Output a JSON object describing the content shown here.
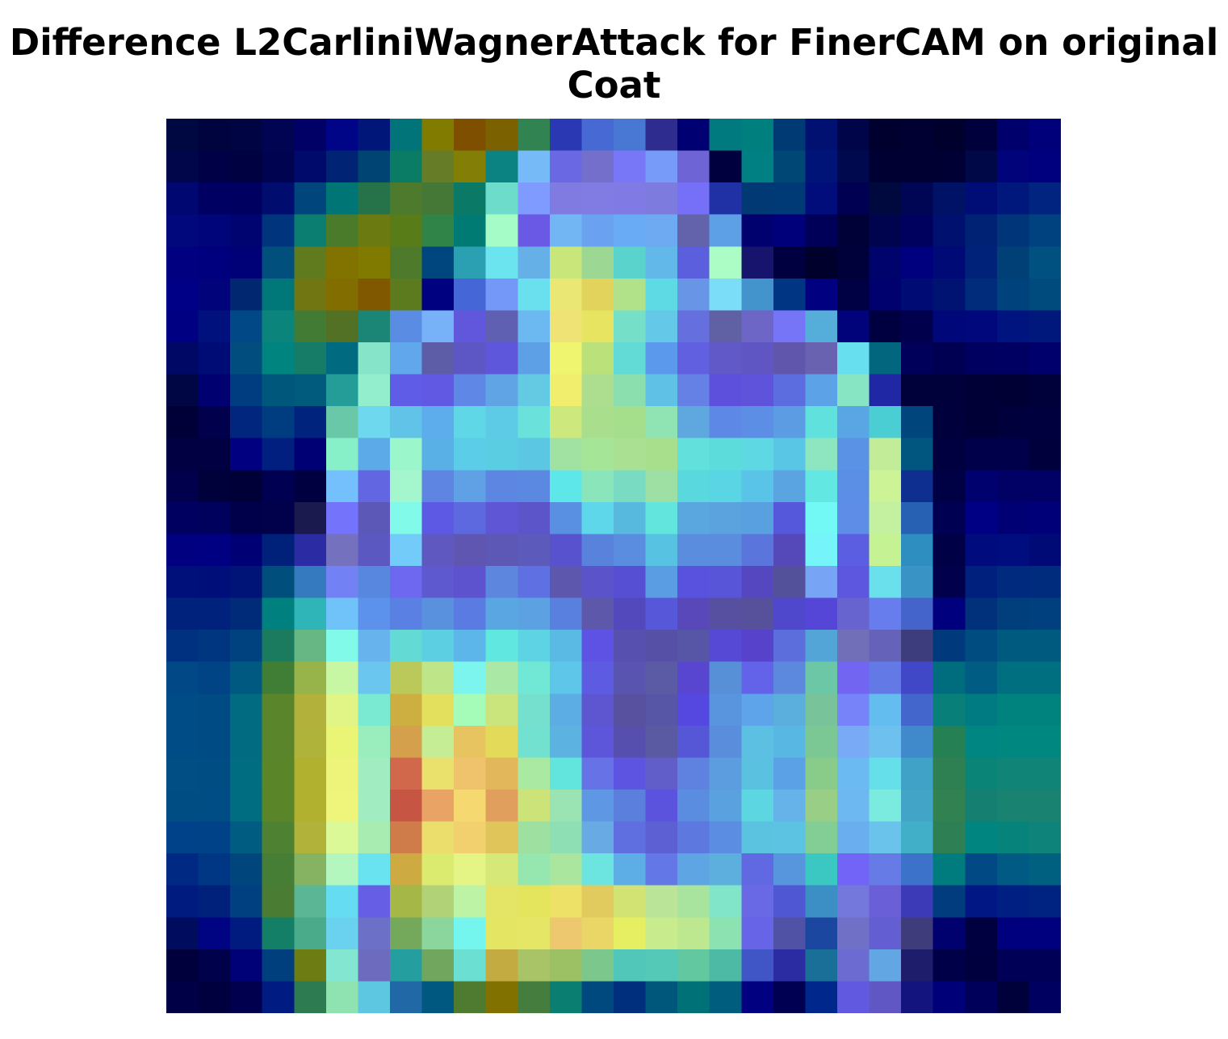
{
  "title": {
    "line1": "Difference L2CarliniWagnerAttack for FinerCAM on original",
    "line2": "Coat"
  },
  "chart_data": {
    "type": "heatmap",
    "title": "Difference L2CarliniWagnerAttack for FinerCAM on original Coat",
    "axes_visible": false,
    "grid": false,
    "rows": 28,
    "cols": 28,
    "colors": [
      [
        "#000842",
        "#00043e",
        "#000442",
        "#000452",
        "#000066",
        "#000487",
        "#001779",
        "#007478",
        "#817b00",
        "#7f4f00",
        "#7b6100",
        "#318351",
        "#2b38b4",
        "#4669d3",
        "#4877d4",
        "#2e2d8f",
        "#000072",
        "#007a7f",
        "#007f7f",
        "#003a74",
        "#001171",
        "#000448",
        "#00002f",
        "#000032",
        "#00002d",
        "#00003d",
        "#00006d",
        "#00007b"
      ],
      [
        "#000649",
        "#000047",
        "#000140",
        "#00034f",
        "#000a6b",
        "#002473",
        "#004473",
        "#0a7b65",
        "#667c27",
        "#837f06",
        "#0b8383",
        "#76baf8",
        "#6a68e3",
        "#736fcb",
        "#7777f7",
        "#779bf9",
        "#6e64d6",
        "#00003f",
        "#008082",
        "#004776",
        "#001477",
        "#00084e",
        "#000033",
        "#000132",
        "#000035",
        "#000848",
        "#00037a",
        "#00007f"
      ],
      [
        "#000770",
        "#000062",
        "#000061",
        "#000d6e",
        "#00457c",
        "#007575",
        "#267349",
        "#4e7a2d",
        "#457837",
        "#0a7a67",
        "#6edcca",
        "#7f9bff",
        "#7f7be0",
        "#817ce3",
        "#7f7ae4",
        "#7d7bdd",
        "#7670f9",
        "#2031a5",
        "#003973",
        "#003a76",
        "#000d7a",
        "#000053",
        "#00093e",
        "#000654",
        "#001265",
        "#000d76",
        "#00187b",
        "#00247f"
      ],
      [
        "#00087c",
        "#00057a",
        "#000470",
        "#00357e",
        "#0b7d71",
        "#4a7b2b",
        "#6c7a12",
        "#587c18",
        "#318448",
        "#007b73",
        "#a6fcc7",
        "#6959e4",
        "#72b6f3",
        "#6aa1f0",
        "#6aabf6",
        "#6eaaf1",
        "#6263aa",
        "#5ea0e5",
        "#00016f",
        "#00007a",
        "#000058",
        "#000136",
        "#00034e",
        "#00015f",
        "#00106f",
        "#002275",
        "#003679",
        "#00417f"
      ],
      [
        "#000080",
        "#00007f",
        "#000077",
        "#004f7d",
        "#5f7b1e",
        "#827200",
        "#807a00",
        "#4e7a2b",
        "#00467e",
        "#2ba0b2",
        "#6ce4ef",
        "#65b0e6",
        "#c9e67b",
        "#9cd893",
        "#5ad3cd",
        "#62b8e8",
        "#5b5edd",
        "#abfcc5",
        "#16146c",
        "#000040",
        "#00002c",
        "#00003b",
        "#00036b",
        "#00007e",
        "#000a76",
        "#002379",
        "#004077",
        "#005080"
      ],
      [
        "#000087",
        "#000379",
        "#00276f",
        "#007779",
        "#717512",
        "#816d00",
        "#805800",
        "#5b7b1e",
        "#000180",
        "#4566d6",
        "#7398f8",
        "#6ae0ef",
        "#ebe774",
        "#e2d35d",
        "#b1e289",
        "#5edae4",
        "#6995e7",
        "#7bddf8",
        "#4393cc",
        "#003584",
        "#000080",
        "#000044",
        "#00006e",
        "#000c73",
        "#001373",
        "#002c7b",
        "#00427c",
        "#004b7d"
      ],
      [
        "#000083",
        "#00117d",
        "#004886",
        "#0b847b",
        "#427c34",
        "#527124",
        "#1b8576",
        "#5a8ce3",
        "#77b2f8",
        "#6157dc",
        "#6060b2",
        "#6cb8f1",
        "#f0e375",
        "#e6e460",
        "#76dfc7",
        "#64c8e9",
        "#6570de",
        "#6060a5",
        "#6e66c6",
        "#7775f7",
        "#54aed9",
        "#00037a",
        "#000041",
        "#00004c",
        "#000778",
        "#00087c",
        "#001480",
        "#00187b"
      ],
      [
        "#000866",
        "#000c75",
        "#004d7e",
        "#00847f",
        "#167b67",
        "#006a80",
        "#86e4c9",
        "#60a7ec",
        "#5d5ca7",
        "#5c57c5",
        "#5f57db",
        "#5ea0e6",
        "#f0f570",
        "#bbe17a",
        "#62dbd7",
        "#5b99ec",
        "#6160e1",
        "#6059c7",
        "#5f56c4",
        "#6057ad",
        "#6862b0",
        "#67dfee",
        "#01667e",
        "#00005a",
        "#000053",
        "#000060",
        "#000062",
        "#00006c"
      ],
      [
        "#000643",
        "#000070",
        "#003d80",
        "#00577c",
        "#005b7d",
        "#249c98",
        "#92eecc",
        "#5f5de8",
        "#6159e3",
        "#5f87e5",
        "#61a4e6",
        "#64cae4",
        "#f0ee6c",
        "#addd8e",
        "#8bdfae",
        "#60c1e7",
        "#6681e6",
        "#5d50dd",
        "#5e53da",
        "#5c6de0",
        "#5ba2e7",
        "#87e5c3",
        "#2027a4",
        "#00003b",
        "#00003a",
        "#000036",
        "#000035",
        "#00003b"
      ],
      [
        "#000039",
        "#00004c",
        "#00277d",
        "#003d80",
        "#00247e",
        "#68c8a7",
        "#6dd8ee",
        "#60c3e7",
        "#5daded",
        "#60d7e7",
        "#5dcbe5",
        "#6ae2db",
        "#cde87d",
        "#a9de8c",
        "#a5df8b",
        "#90e3b3",
        "#5ea7df",
        "#5e88e5",
        "#5d8ee5",
        "#5b9ce3",
        "#60e1dd",
        "#5aa6e5",
        "#4bcdd4",
        "#00467c",
        "#00003c",
        "#000036",
        "#00003d",
        "#00003f"
      ],
      [
        "#000043",
        "#000042",
        "#000081",
        "#001f7f",
        "#000074",
        "#88f0c9",
        "#5daae8",
        "#9cf6cb",
        "#59b0e6",
        "#5bcde9",
        "#5bcde3",
        "#5cc7e2",
        "#a1e2a3",
        "#a5e597",
        "#a9e091",
        "#a7df8c",
        "#62e0db",
        "#5cdcdb",
        "#5ed8e3",
        "#5ac6e6",
        "#8de6c0",
        "#5a92e6",
        "#c2ec97",
        "#00567e",
        "#000041",
        "#00004a",
        "#00004a",
        "#00003c"
      ],
      [
        "#00004d",
        "#00003b",
        "#000038",
        "#000052",
        "#000041",
        "#74c0fd",
        "#6366e1",
        "#a4f6cc",
        "#5f85e3",
        "#60a0e4",
        "#5d86e2",
        "#5b88e1",
        "#5ee7e8",
        "#8ae6ba",
        "#79dbc2",
        "#9ee0a3",
        "#59d9dd",
        "#59d5e3",
        "#59c4e7",
        "#5aa4e2",
        "#63e7e3",
        "#5b8fe5",
        "#cdf397",
        "#0e2f8f",
        "#000044",
        "#00006e",
        "#000065",
        "#000065"
      ],
      [
        "#000061",
        "#00005d",
        "#00004a",
        "#00004b",
        "#1a1a4f",
        "#7473fc",
        "#5c58b7",
        "#81faea",
        "#5e59e4",
        "#5d6adf",
        "#5f56d5",
        "#5c55c9",
        "#5a90e2",
        "#5ed7eb",
        "#57b9de",
        "#61e5dc",
        "#5aa6df",
        "#5aa3df",
        "#58a0df",
        "#5558da",
        "#72f9f5",
        "#5d8de7",
        "#c3f1a0",
        "#2661b3",
        "#000052",
        "#000085",
        "#000074",
        "#000079"
      ],
      [
        "#000080",
        "#000082",
        "#000075",
        "#00217a",
        "#2b2ca4",
        "#7472bf",
        "#5b59c1",
        "#72cbf9",
        "#5e58c0",
        "#5e56b0",
        "#5d57b6",
        "#5c5abb",
        "#5852ce",
        "#5982dd",
        "#5a8ddf",
        "#57c2e1",
        "#5a8ddd",
        "#5a8ddd",
        "#5a75dc",
        "#5548b8",
        "#75f5fa",
        "#5b5ee0",
        "#c5f292",
        "#2e8ebf",
        "#000047",
        "#000c7e",
        "#000d7f",
        "#000a77"
      ],
      [
        "#00107a",
        "#000e79",
        "#001478",
        "#004e7b",
        "#3579be",
        "#7282f4",
        "#5787df",
        "#6d68ef",
        "#5e59cf",
        "#5d53cf",
        "#5d86df",
        "#5e70e2",
        "#5d57ae",
        "#5a53c9",
        "#564fd4",
        "#5b9de3",
        "#5952df",
        "#5955d9",
        "#5447c0",
        "#54519b",
        "#78a4f6",
        "#5d57e0",
        "#69e0ec",
        "#3993c5",
        "#00004c",
        "#00207d",
        "#002a7e",
        "#002c7e"
      ],
      [
        "#00227d",
        "#00227d",
        "#002b78",
        "#00807f",
        "#2fb4b7",
        "#70c3f8",
        "#5c91ec",
        "#5a80e4",
        "#5a91df",
        "#5a7be1",
        "#5aa6e3",
        "#5ca2e3",
        "#5a80df",
        "#5d58a9",
        "#5349bc",
        "#5758d9",
        "#5848b9",
        "#574fa0",
        "#57509a",
        "#5048cc",
        "#5546d8",
        "#6864cf",
        "#687ded",
        "#4463cb",
        "#00007f",
        "#00317a",
        "#003f7c",
        "#00407e"
      ],
      [
        "#003180",
        "#00367f",
        "#00427f",
        "#1b7b5f",
        "#67b785",
        "#81faea",
        "#66b3ed",
        "#63dad3",
        "#5dcfe3",
        "#5db6e9",
        "#5fe7e0",
        "#5dd3e4",
        "#5bbae3",
        "#5e52e5",
        "#5750ae",
        "#5651a7",
        "#5655a6",
        "#5649d6",
        "#5642cb",
        "#5c6edc",
        "#53a5d8",
        "#716fb7",
        "#6563b9",
        "#3d3c7c",
        "#003a7d",
        "#004b7f",
        "#00597f",
        "#00597f"
      ],
      [
        "#004886",
        "#004485",
        "#005980",
        "#407e36",
        "#96b449",
        "#c8f7a4",
        "#6ac6ef",
        "#bbc95a",
        "#bfe589",
        "#7cf5ee",
        "#aae8a5",
        "#71e8d6",
        "#5ec6e8",
        "#5e5be3",
        "#5854b0",
        "#5a5ba4",
        "#5846d1",
        "#5890d8",
        "#6263e8",
        "#5c88dd",
        "#6cc7a6",
        "#7165f2",
        "#6379e5",
        "#4048c7",
        "#006d7f",
        "#005c83",
        "#006f7f",
        "#006f7f"
      ],
      [
        "#004c86",
        "#004b84",
        "#006b81",
        "#5a852a",
        "#b1b13c",
        "#e1f587",
        "#7aebd2",
        "#cdae40",
        "#e2e05c",
        "#a5fbb8",
        "#cbe57d",
        "#76e0cf",
        "#5cade3",
        "#5e55d1",
        "#5751a0",
        "#5755a6",
        "#5548e0",
        "#5995df",
        "#5da4eb",
        "#5aafdc",
        "#78c399",
        "#7784f9",
        "#63bdee",
        "#4366cd",
        "#087f79",
        "#007b81",
        "#00837f",
        "#00837f"
      ],
      [
        "#004c86",
        "#004b84",
        "#006b81",
        "#5a852a",
        "#b0b33a",
        "#eaf576",
        "#9aeebd",
        "#d5a04b",
        "#c4ed96",
        "#e8c461",
        "#e2da58",
        "#73e1cf",
        "#5cb2e1",
        "#5d55da",
        "#574fad",
        "#5a5aa2",
        "#5657d7",
        "#5a8ddc",
        "#5cc0e3",
        "#59b8e3",
        "#7cc894",
        "#79aaf6",
        "#6ec1ef",
        "#408acb",
        "#258153",
        "#008682",
        "#008780",
        "#008780"
      ],
      [
        "#004e84",
        "#004d84",
        "#006e80",
        "#5b8529",
        "#b1b02f",
        "#eef47a",
        "#a1ecc0",
        "#d1684b",
        "#eae16c",
        "#efc36c",
        "#e2b65a",
        "#a9e9a1",
        "#62e5dd",
        "#6772e6",
        "#5d55e1",
        "#615eca",
        "#5f82e0",
        "#5b9dde",
        "#5bc1e1",
        "#5aa1e6",
        "#89cc8a",
        "#6cbaf2",
        "#65dfe9",
        "#41a2c7",
        "#2e7f51",
        "#0a8476",
        "#108577",
        "#108577"
      ],
      [
        "#004d84",
        "#004c84",
        "#006d80",
        "#5a8529",
        "#b1b02f",
        "#eff57b",
        "#a1ecc0",
        "#c65544",
        "#e9a465",
        "#f6d871",
        "#e19f5d",
        "#cce37a",
        "#9ae3b2",
        "#5e98e4",
        "#5a7fdd",
        "#5b53dd",
        "#5a8ddf",
        "#5aa1e0",
        "#5cd6e1",
        "#65b3e8",
        "#98ce86",
        "#6eb8f1",
        "#7bebe0",
        "#42a5c8",
        "#328151",
        "#158071",
        "#1a8270",
        "#1a8270"
      ],
      [
        "#00428a",
        "#004287",
        "#005c81",
        "#4e8232",
        "#b0b23a",
        "#dcf997",
        "#a9ecb1",
        "#d07b4a",
        "#ebde6c",
        "#f1d06d",
        "#e0c65a",
        "#9ee0a0",
        "#8ee0b4",
        "#68abe4",
        "#5f6fe0",
        "#5c60d2",
        "#5d79e0",
        "#5b8de2",
        "#5bc3df",
        "#5cc3e2",
        "#83ce94",
        "#6aaef0",
        "#69c3ea",
        "#40afc7",
        "#2f7f55",
        "#008580",
        "#06847b",
        "#0d8379"
      ],
      [
        "#002983",
        "#003784",
        "#00467d",
        "#477e35",
        "#85b362",
        "#b3f7bf",
        "#69e3ef",
        "#ceaa43",
        "#daeb70",
        "#e4f586",
        "#d6e877",
        "#96e6b0",
        "#aae69d",
        "#6ce5e0",
        "#5daee7",
        "#6377e6",
        "#5ea5e3",
        "#5dafdd",
        "#6169e2",
        "#5795dd",
        "#3bc7c2",
        "#7164f7",
        "#667be6",
        "#3d72ca",
        "#007c7f",
        "#004985",
        "#005a84",
        "#00607f"
      ],
      [
        "#001b80",
        "#00217b",
        "#004080",
        "#4a7d33",
        "#5ab695",
        "#65dcf1",
        "#675ee6",
        "#a4b747",
        "#b1d276",
        "#bcf3a5",
        "#e4e567",
        "#e5e45d",
        "#ede267",
        "#e2cb5e",
        "#d2e374",
        "#bae498",
        "#a8e49e",
        "#81e5c9",
        "#6969e6",
        "#4f57d3",
        "#3b8fc4",
        "#7478dd",
        "#6a5fd7",
        "#3d3ab8",
        "#003c7e",
        "#001784",
        "#001f82",
        "#002280"
      ],
      [
        "#000c5e",
        "#000482",
        "#001b80",
        "#137f66",
        "#4aab8a",
        "#6ad2ee",
        "#6c71c7",
        "#74a95b",
        "#8bd69d",
        "#74f6ee",
        "#e4e563",
        "#e5e665",
        "#edc86e",
        "#e9d666",
        "#e6ef62",
        "#c8eb8d",
        "#bde890",
        "#8de2b1",
        "#6764e8",
        "#5052a6",
        "#1c47a0",
        "#7070c7",
        "#635ed2",
        "#3e3c7b",
        "#00006e",
        "#000041",
        "#00007f",
        "#00007f"
      ],
      [
        "#00003d",
        "#00014b",
        "#000077",
        "#003f7d",
        "#6d7c13",
        "#82e6d1",
        "#6c6bbe",
        "#259e9f",
        "#71a65f",
        "#6adfd2",
        "#c3aa41",
        "#a8c466",
        "#9cc164",
        "#7cc78c",
        "#51c7b9",
        "#55c9b7",
        "#62c89f",
        "#4dbaa5",
        "#4056c7",
        "#2c2ca2",
        "#1a6f99",
        "#6b6bd2",
        "#62a6e3",
        "#1d1d6b",
        "#000048",
        "#00003f",
        "#000057",
        "#000057"
      ],
      [
        "#000046",
        "#00003e",
        "#00004f",
        "#001c82",
        "#2d7c51",
        "#8fe3b1",
        "#5dc7e1",
        "#2169a6",
        "#005880",
        "#4f7b30",
        "#817100",
        "#447d3d",
        "#0a7f71",
        "#00497e",
        "#002f7d",
        "#00577c",
        "#007277",
        "#005d7d",
        "#000081",
        "#000052",
        "#00278b",
        "#6259e1",
        "#6057c5",
        "#14147f",
        "#000079",
        "#00005a",
        "#00003a",
        "#000060"
      ]
    ]
  }
}
